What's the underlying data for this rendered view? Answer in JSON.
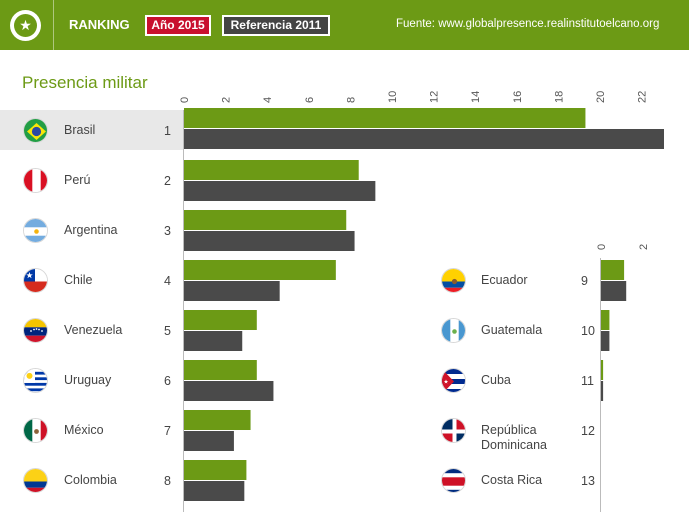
{
  "header": {
    "ranking_label": "RANKING",
    "year_badge": "Año 2015",
    "reference_badge": "Referencia 2011",
    "source": "Fuente: www.globalpresence.realinstitutoelcano.org"
  },
  "colors": {
    "brand_green": "#6c9a15",
    "series_2015": "#6c9a15",
    "series_2011": "#4a4a4a",
    "badge_red": "#c8102e",
    "badge_grey": "#444444",
    "row_highlight": "#e8e8e8"
  },
  "chart_data": {
    "type": "bar",
    "orientation": "horizontal",
    "title": "Presencia militar",
    "categories": [
      "Brasil",
      "Perú",
      "Argentina",
      "Chile",
      "Venezuela",
      "Uruguay",
      "México",
      "Colombia",
      "Ecuador",
      "Guatemala",
      "Cuba",
      "República Dominicana",
      "Costa Rica"
    ],
    "ranks": [
      "1",
      "2",
      "3",
      "4",
      "5",
      "6",
      "7",
      "8",
      "9",
      "10",
      "11",
      "12",
      "13"
    ],
    "flags": [
      "brazil-flag-icon",
      "peru-flag-icon",
      "argentina-flag-icon",
      "chile-flag-icon",
      "venezuela-flag-icon",
      "uruguay-flag-icon",
      "mexico-flag-icon",
      "colombia-flag-icon",
      "ecuador-flag-icon",
      "guatemala-flag-icon",
      "cuba-flag-icon",
      "dominican-republic-flag-icon",
      "costa-rica-flag-icon"
    ],
    "series": [
      {
        "name": "Año 2015",
        "values": [
          19.3,
          8.4,
          7.8,
          7.3,
          3.5,
          3.5,
          3.2,
          3.0,
          1.1,
          0.4,
          0.1,
          0,
          0
        ]
      },
      {
        "name": "Referencia 2011",
        "values": [
          23.5,
          9.2,
          8.2,
          4.6,
          2.8,
          4.3,
          2.4,
          2.9,
          1.2,
          0.4,
          0.1,
          0,
          0
        ]
      }
    ],
    "axis_main": {
      "ticks": [
        "0",
        "2",
        "4",
        "6",
        "8",
        "10",
        "12",
        "14",
        "16",
        "18",
        "20",
        "22"
      ],
      "max_visible": 23
    },
    "axis_small": {
      "ticks": [
        "0",
        "2"
      ]
    },
    "highlighted_category": "Brasil",
    "grid": false,
    "legend": "top"
  }
}
